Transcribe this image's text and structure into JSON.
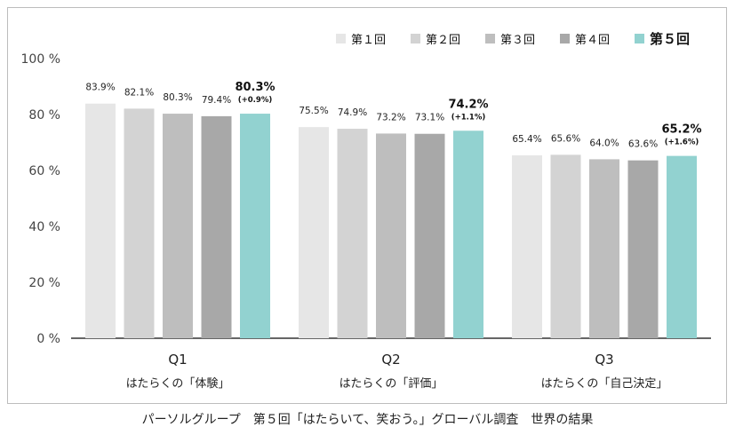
{
  "chart_data": {
    "type": "bar",
    "categories": [
      "Q1",
      "Q2",
      "Q3"
    ],
    "category_sublabels": [
      "はたらくの「体験」",
      "はたらくの「評価」",
      "はたらくの「自己決定」"
    ],
    "ylim": [
      0,
      100
    ],
    "yticks": [
      0,
      20,
      40,
      60,
      80,
      100
    ],
    "ytick_labels": [
      "0 %",
      "20 %",
      "40 %",
      "60 %",
      "80 %",
      "100 %"
    ],
    "grid": false,
    "legend_position": "top-right",
    "series": [
      {
        "name": "第１回",
        "color": "#e6e6e6",
        "values": [
          83.9,
          75.5,
          65.4
        ],
        "labels": [
          "83.9%",
          "75.5%",
          "65.4%"
        ]
      },
      {
        "name": "第２回",
        "color": "#d3d3d3",
        "values": [
          82.1,
          74.9,
          65.6
        ],
        "labels": [
          "82.1%",
          "74.9%",
          "65.6%"
        ]
      },
      {
        "name": "第３回",
        "color": "#bebebe",
        "values": [
          80.3,
          73.2,
          64.0
        ],
        "labels": [
          "80.3%",
          "73.2%",
          "64.0%"
        ]
      },
      {
        "name": "第４回",
        "color": "#a8a8a8",
        "values": [
          79.4,
          73.1,
          63.6
        ],
        "labels": [
          "79.4%",
          "73.1%",
          "63.6%"
        ]
      },
      {
        "name": "第５回",
        "color": "#92d2d0",
        "values": [
          80.3,
          74.2,
          65.2
        ],
        "labels": [
          "80.3%",
          "74.2%",
          "65.2%"
        ],
        "changes": [
          "(+0.9%)",
          "(+1.1%)",
          "(+1.6%)"
        ],
        "highlight": true
      }
    ]
  },
  "footer": {
    "caption": "パーソルグループ　第５回「はたらいて、笑おう。」グローバル調査　世界の結果"
  }
}
